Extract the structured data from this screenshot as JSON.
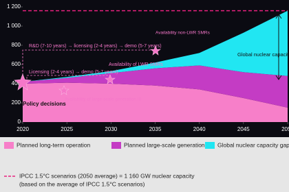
{
  "chart_data": {
    "type": "area",
    "stacked": true,
    "x": [
      2020,
      2025,
      2030,
      2035,
      2040,
      2045,
      2050
    ],
    "series": [
      {
        "name": "Planned long-term operation",
        "color": "#f77fc9",
        "values": [
          400,
          410,
          400,
          380,
          340,
          250,
          150
        ]
      },
      {
        "name": "Planned large-scale generation III",
        "color": "#c43cc4",
        "values": [
          20,
          50,
          110,
          180,
          250,
          270,
          330
        ]
      },
      {
        "name": "Global nuclear capacity gap",
        "color": "#21e6f2",
        "values": [
          0,
          10,
          20,
          60,
          130,
          410,
          680
        ]
      }
    ],
    "xlim": [
      2020,
      2050
    ],
    "xticks": [
      2020,
      2025,
      2030,
      2035,
      2040,
      2045,
      2050
    ],
    "ylim": [
      0,
      1200
    ],
    "yticks": [
      0,
      200,
      400,
      600,
      800,
      {
        "value": 1000,
        "label": "1 000"
      },
      {
        "value": 1200,
        "label": "1 200"
      }
    ],
    "reference_line": {
      "value": 1160,
      "color": "#e8207f",
      "label": "IPCC 1.5°C scenarios (2050 average) = 1 160 GW nuclear capacity",
      "note": "(based on the average of IPCC 1.5°C scenarios)"
    },
    "annotations": [
      "R&D (7-10 years) → licensing (2-4 years) → demo (5-7 years)",
      "Availability non-LWR SMRs",
      "Licensing (2-4 years) → demo (5-7 years)",
      "Availability of LWR SMRs",
      "Availability of large-scale generation III",
      "Policy decisions",
      "Global nuclear capacity gap"
    ]
  }
}
